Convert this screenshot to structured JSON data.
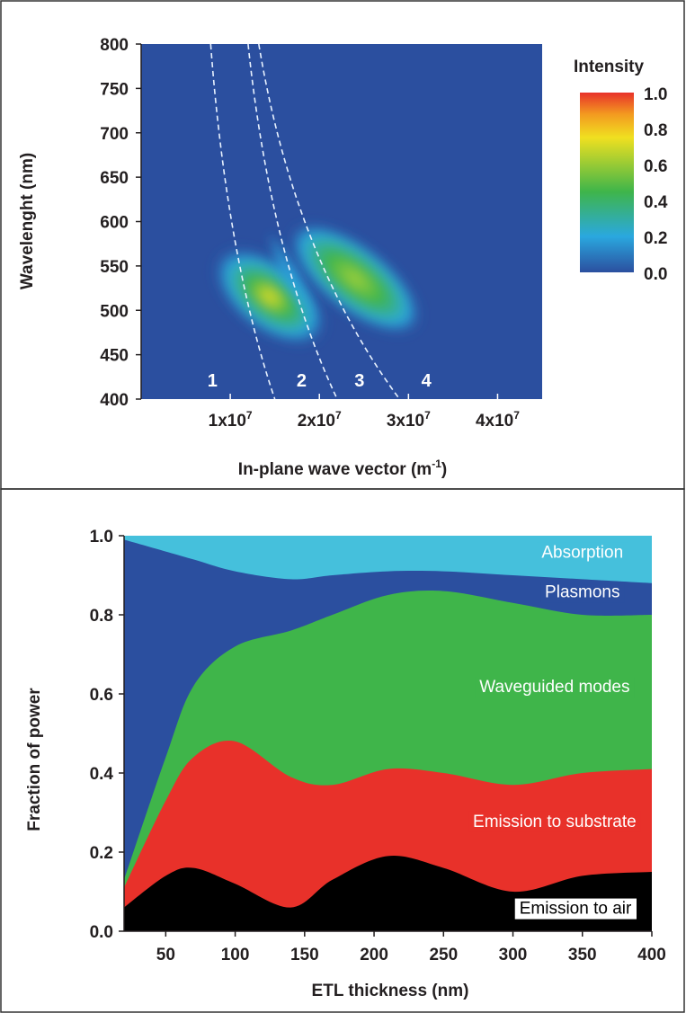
{
  "chart_data": [
    {
      "type": "heatmap",
      "xlabel": "In-plane wave vector (m",
      "xlabel_sup": "-1",
      "xlabel_close": ")",
      "ylabel": "Wavelenght (nm)",
      "xlim": [
        0,
        45000000
      ],
      "ylim": [
        400,
        800
      ],
      "x_ticks": [
        {
          "value": 10000000,
          "mantissa": "1x10",
          "exp": "7"
        },
        {
          "value": 20000000,
          "mantissa": "2x10",
          "exp": "7"
        },
        {
          "value": 30000000,
          "mantissa": "3x10",
          "exp": "7"
        },
        {
          "value": 40000000,
          "mantissa": "4x10",
          "exp": "7"
        }
      ],
      "y_ticks": [
        "400",
        "450",
        "500",
        "550",
        "600",
        "650",
        "700",
        "750",
        "800"
      ],
      "colorbar": {
        "title": "Intensity",
        "ticks": [
          "0.0",
          "0.2",
          "0.4",
          "0.6",
          "0.8",
          "1.0"
        ],
        "colors": [
          "#2b4f9f",
          "#2aa8df",
          "#3fb54a",
          "#f0e020",
          "#f39a20",
          "#e8312a"
        ]
      },
      "background_color": "#2b4f9f",
      "region_labels": [
        {
          "text": "1",
          "x": 8000000
        },
        {
          "text": "2",
          "x": 18000000
        },
        {
          "text": "3",
          "x": 24500000
        },
        {
          "text": "4",
          "x": 32000000
        }
      ],
      "dispersion_lines": [
        {
          "x_at_800": 7800000,
          "x_at_400": 15000000
        },
        {
          "x_at_800": 12000000,
          "x_at_400": 22000000
        },
        {
          "x_at_800": 13200000,
          "x_at_400": 29000000
        }
      ]
    },
    {
      "type": "area",
      "stacked": true,
      "xlabel": "ETL thickness (nm)",
      "ylabel": "Fraction of power",
      "xlim": [
        20,
        400
      ],
      "ylim": [
        0,
        1.0
      ],
      "x_ticks": [
        "50",
        "100",
        "150",
        "200",
        "250",
        "300",
        "350",
        "400"
      ],
      "y_ticks": [
        "0.0",
        "0.2",
        "0.4",
        "0.6",
        "0.8",
        "1.0"
      ],
      "x": [
        20,
        50,
        70,
        100,
        140,
        170,
        210,
        250,
        300,
        350,
        400
      ],
      "series": [
        {
          "name": "Emission to air",
          "color": "#000000",
          "cumulative": [
            0.06,
            0.14,
            0.16,
            0.12,
            0.06,
            0.13,
            0.19,
            0.16,
            0.1,
            0.14,
            0.15
          ]
        },
        {
          "name": "Emission to substrate",
          "color": "#e8312a",
          "cumulative": [
            0.11,
            0.33,
            0.44,
            0.48,
            0.39,
            0.37,
            0.41,
            0.4,
            0.37,
            0.4,
            0.41
          ]
        },
        {
          "name": "Waveguided modes",
          "color": "#3fb54a",
          "cumulative": [
            0.13,
            0.44,
            0.62,
            0.72,
            0.76,
            0.8,
            0.85,
            0.86,
            0.83,
            0.8,
            0.8
          ]
        },
        {
          "name": "Plasmons",
          "color": "#2b4f9f",
          "cumulative": [
            0.99,
            0.96,
            0.94,
            0.91,
            0.89,
            0.9,
            0.91,
            0.91,
            0.9,
            0.89,
            0.88
          ]
        },
        {
          "name": "Absorption",
          "color": "#45c0dc",
          "cumulative": [
            1.0,
            1.0,
            1.0,
            1.0,
            1.0,
            1.0,
            1.0,
            1.0,
            1.0,
            1.0,
            1.0
          ]
        }
      ],
      "annotations": [
        {
          "text": "Absorption",
          "x": 350,
          "y": 0.96,
          "bg": "#45c0dc",
          "fg": "#ffffff"
        },
        {
          "text": "Plasmons",
          "x": 350,
          "y": 0.86,
          "bg": "#2b4f9f",
          "fg": "#ffffff"
        },
        {
          "text": "Waveguided modes",
          "x": 330,
          "y": 0.62,
          "bg": "#3fb54a",
          "fg": "#ffffff"
        },
        {
          "text": "Emission to substrate",
          "x": 330,
          "y": 0.28,
          "bg": "#e8312a",
          "fg": "#ffffff"
        },
        {
          "text": "Emission to air",
          "x": 345,
          "y": 0.06,
          "bg": "#ffffff",
          "fg": "#000000"
        }
      ]
    }
  ]
}
